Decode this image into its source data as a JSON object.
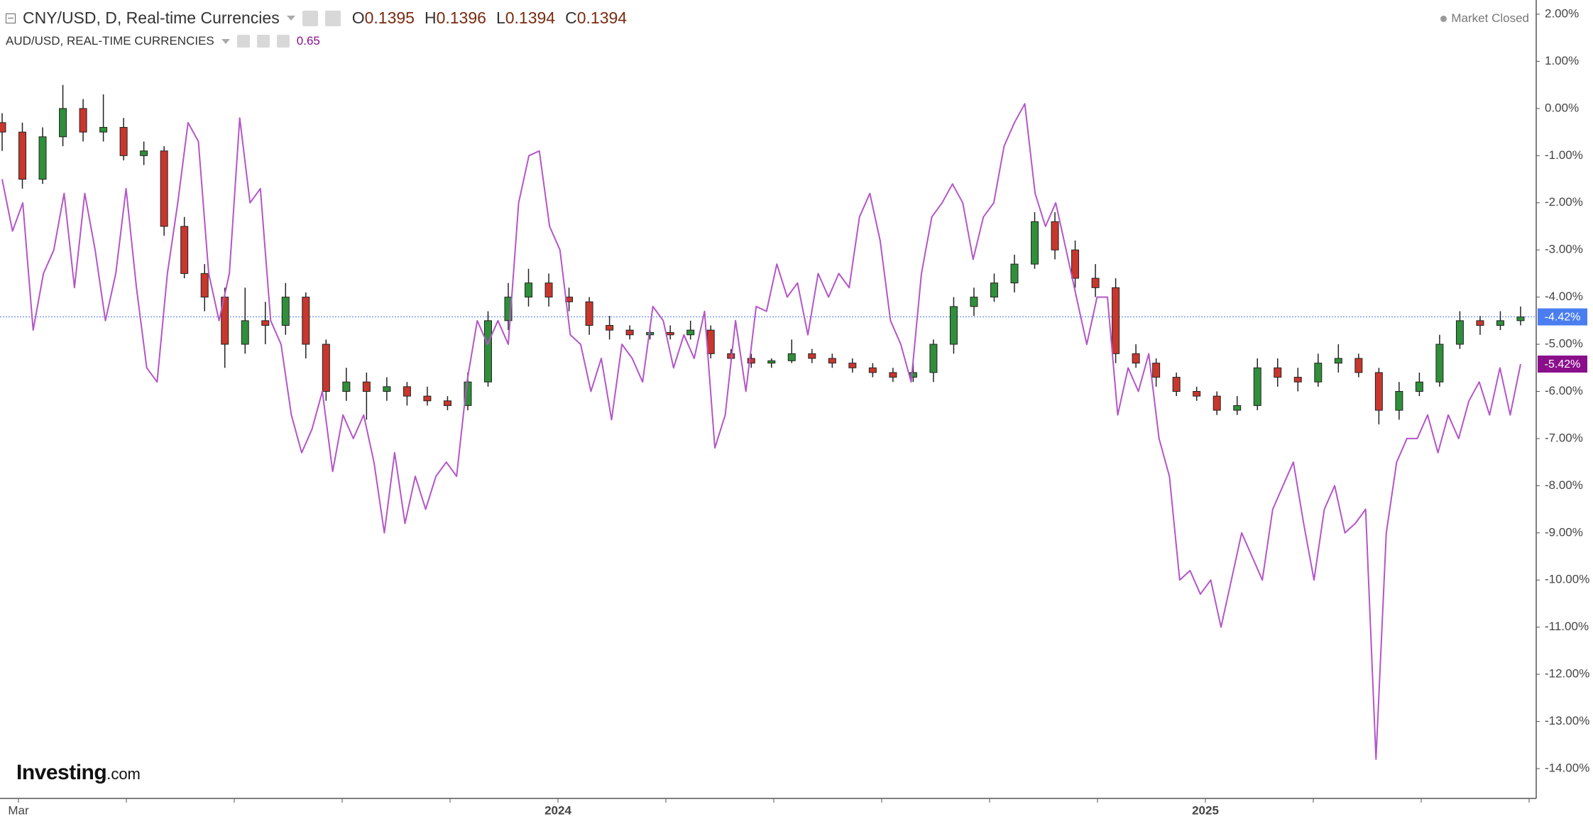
{
  "chart_data": {
    "type": "candlestick",
    "market_status": "Market Closed",
    "logo": {
      "brand": "Investing",
      "suffix": ".com"
    },
    "ohlc": [
      {
        "label": "O",
        "value": 0.1395
      },
      {
        "label": "H",
        "value": 0.1396
      },
      {
        "label": "L",
        "value": 0.1394
      },
      {
        "label": "C",
        "value": 0.1394
      }
    ],
    "x_tick_labels": [
      "Mar",
      null,
      null,
      null,
      null,
      "2024",
      null,
      null,
      null,
      null,
      null,
      "2025",
      null,
      null,
      null
    ],
    "ylim": [
      2,
      -14
    ],
    "yticks": [
      {
        "value": 2,
        "label": "2.00%"
      },
      {
        "value": 1,
        "label": "1.00%"
      },
      {
        "value": 0,
        "label": "0.00%"
      },
      {
        "value": -1,
        "label": "-1.00%"
      },
      {
        "value": -2,
        "label": "-2.00%"
      },
      {
        "value": -3,
        "label": "-3.00%"
      },
      {
        "value": -4,
        "label": "-4.00%"
      },
      {
        "value": -5,
        "label": "-5.00%"
      },
      {
        "value": -6,
        "label": "-6.00%"
      },
      {
        "value": -7,
        "label": "-7.00%"
      },
      {
        "value": -8,
        "label": "-8.00%"
      },
      {
        "value": -9,
        "label": "-9.00%"
      },
      {
        "value": -10,
        "label": "-10.00%"
      },
      {
        "value": -11,
        "label": "-11.00%"
      },
      {
        "value": -12,
        "label": "-12.00%"
      },
      {
        "value": -13,
        "label": "-13.00%"
      },
      {
        "value": -14,
        "label": "-14.00%"
      }
    ],
    "series": [
      {
        "name": "CNY/USD, D, Real-time Currencies",
        "type": "candlestick",
        "up_color": "#2f8f3a",
        "down_color": "#c8372d",
        "color": "#4a7ef0",
        "last_label": "-4.42%",
        "open": [
          -0.3,
          -0.5,
          -1.5,
          -0.6,
          0.0,
          -0.5,
          -0.4,
          -1.0,
          -0.9,
          -2.5,
          -3.5,
          -4.0,
          -5.0,
          -4.5,
          -4.6,
          -4.0,
          -5.0,
          -6.0,
          -5.8,
          -6.0,
          -5.9,
          -6.1,
          -6.2,
          -6.3,
          -5.8,
          -4.5,
          -4.0,
          -3.7,
          -4.0,
          -4.1,
          -4.6,
          -4.7,
          -4.8,
          -4.75,
          -4.8,
          -4.7,
          -5.2,
          -5.3,
          -5.4,
          -5.35,
          -5.2,
          -5.3,
          -5.4,
          -5.5,
          -5.6,
          -5.7,
          -5.6,
          -5.0,
          -4.2,
          -4.0,
          -3.7,
          -3.3,
          -2.4,
          -3.0,
          -3.6,
          -3.8,
          -5.2,
          -5.4,
          -5.7,
          -6.0,
          -6.1,
          -6.4,
          -6.3,
          -5.5,
          -5.7,
          -5.8,
          -5.4,
          -5.3,
          -5.6,
          -6.4,
          -6.0,
          -5.8,
          -5.0,
          -4.5,
          -4.6,
          -4.5
        ],
        "high": [
          -0.1,
          -0.3,
          -0.4,
          0.5,
          0.2,
          0.3,
          -0.2,
          -0.7,
          -0.8,
          -2.3,
          -3.3,
          -3.8,
          -3.8,
          -4.1,
          -3.7,
          -3.9,
          -4.9,
          -5.5,
          -5.6,
          -5.7,
          -5.8,
          -5.9,
          -6.1,
          -5.6,
          -4.3,
          -3.7,
          -3.4,
          -3.5,
          -3.8,
          -4.0,
          -4.4,
          -4.6,
          -4.6,
          -4.6,
          -4.5,
          -4.6,
          -5.1,
          -5.2,
          -5.3,
          -4.9,
          -5.1,
          -5.2,
          -5.3,
          -5.4,
          -5.5,
          -5.4,
          -4.9,
          -4.0,
          -3.8,
          -3.5,
          -3.1,
          -2.2,
          -2.2,
          -2.8,
          -3.3,
          -3.6,
          -5.0,
          -5.3,
          -5.6,
          -5.9,
          -6.0,
          -6.1,
          -5.3,
          -5.3,
          -5.5,
          -5.2,
          -5.0,
          -5.2,
          -5.5,
          -5.8,
          -5.6,
          -4.8,
          -4.3,
          -4.4,
          -4.3,
          -4.2
        ],
        "low": [
          -0.9,
          -1.7,
          -1.6,
          -0.8,
          -0.7,
          -0.7,
          -1.1,
          -1.2,
          -2.7,
          -3.6,
          -4.3,
          -5.5,
          -5.2,
          -5.0,
          -4.8,
          -5.3,
          -6.2,
          -6.2,
          -6.6,
          -6.2,
          -6.3,
          -6.3,
          -6.4,
          -6.4,
          -5.9,
          -4.7,
          -4.2,
          -4.2,
          -4.3,
          -4.8,
          -4.9,
          -4.9,
          -4.9,
          -4.9,
          -4.9,
          -5.3,
          -5.4,
          -5.5,
          -5.5,
          -5.4,
          -5.4,
          -5.5,
          -5.6,
          -5.7,
          -5.8,
          -5.8,
          -5.8,
          -5.2,
          -4.4,
          -4.1,
          -3.9,
          -3.4,
          -3.2,
          -3.8,
          -4.0,
          -5.4,
          -5.5,
          -5.9,
          -6.1,
          -6.2,
          -6.5,
          -6.5,
          -6.4,
          -5.9,
          -6.0,
          -5.9,
          -5.6,
          -5.7,
          -6.7,
          -6.6,
          -6.1,
          -5.9,
          -5.1,
          -4.8,
          -4.7,
          -4.6
        ],
        "close": [
          -0.5,
          -1.5,
          -0.6,
          0.0,
          -0.5,
          -0.4,
          -1.0,
          -0.9,
          -2.5,
          -3.5,
          -4.0,
          -5.0,
          -4.5,
          -4.6,
          -4.0,
          -5.0,
          -6.0,
          -5.8,
          -6.0,
          -5.9,
          -6.1,
          -6.2,
          -6.3,
          -5.8,
          -4.5,
          -4.0,
          -3.7,
          -4.0,
          -4.1,
          -4.6,
          -4.7,
          -4.8,
          -4.75,
          -4.8,
          -4.7,
          -5.2,
          -5.3,
          -5.4,
          -5.35,
          -5.2,
          -5.3,
          -5.4,
          -5.5,
          -5.6,
          -5.7,
          -5.6,
          -5.0,
          -4.2,
          -4.0,
          -3.7,
          -3.3,
          -2.4,
          -3.0,
          -3.6,
          -3.8,
          -5.2,
          -5.4,
          -5.7,
          -6.0,
          -6.1,
          -6.4,
          -6.3,
          -5.5,
          -5.7,
          -5.8,
          -5.4,
          -5.3,
          -5.6,
          -6.4,
          -6.0,
          -5.8,
          -5.0,
          -4.5,
          -4.6,
          -4.5,
          -4.42
        ]
      },
      {
        "name": "AUD/USD, REAL-TIME CURRENCIES",
        "type": "line",
        "color": "#b455c8",
        "label_color": "#8b0f8b",
        "legend_value": 0.65,
        "last_label": "-5.42%",
        "values": [
          -1.5,
          -2.6,
          -2.0,
          -4.7,
          -3.5,
          -3.0,
          -1.8,
          -3.8,
          -1.8,
          -3.0,
          -4.5,
          -3.5,
          -1.7,
          -3.8,
          -5.5,
          -5.8,
          -3.5,
          -2.0,
          -0.3,
          -0.7,
          -3.5,
          -4.5,
          -3.5,
          -0.2,
          -2.0,
          -1.7,
          -4.5,
          -5.0,
          -6.5,
          -7.3,
          -6.8,
          -6.0,
          -7.7,
          -6.5,
          -7.0,
          -6.5,
          -7.5,
          -9.0,
          -7.3,
          -8.8,
          -7.8,
          -8.5,
          -7.8,
          -7.5,
          -7.8,
          -5.8,
          -4.5,
          -5.0,
          -4.5,
          -5.0,
          -2.0,
          -1.0,
          -0.9,
          -2.5,
          -3.0,
          -4.8,
          -5.0,
          -6.0,
          -5.3,
          -6.6,
          -5.0,
          -5.3,
          -5.8,
          -4.2,
          -4.5,
          -5.5,
          -4.8,
          -5.3,
          -4.3,
          -7.2,
          -6.5,
          -4.5,
          -6.0,
          -4.2,
          -4.3,
          -3.3,
          -4.0,
          -3.7,
          -4.8,
          -3.5,
          -4.0,
          -3.5,
          -3.8,
          -2.3,
          -1.8,
          -2.8,
          -4.5,
          -5.0,
          -5.8,
          -3.5,
          -2.3,
          -2.0,
          -1.6,
          -2.0,
          -3.2,
          -2.3,
          -2.0,
          -0.8,
          -0.3,
          0.1,
          -1.8,
          -2.5,
          -2.0,
          -3.0,
          -4.0,
          -5.0,
          -4.0,
          -4.0,
          -6.5,
          -5.5,
          -6.0,
          -5.2,
          -7.0,
          -7.8,
          -10.0,
          -9.8,
          -10.3,
          -10.0,
          -11.0,
          -10.0,
          -9.0,
          -9.5,
          -10.0,
          -8.5,
          -8.0,
          -7.5,
          -8.8,
          -10.0,
          -8.5,
          -8.0,
          -9.0,
          -8.8,
          -8.5,
          -13.8,
          -9.0,
          -7.5,
          -7.0,
          -7.0,
          -6.5,
          -7.3,
          -6.5,
          -7.0,
          -6.2,
          -5.8,
          -6.5,
          -5.5,
          -6.5,
          -5.42
        ]
      }
    ]
  }
}
